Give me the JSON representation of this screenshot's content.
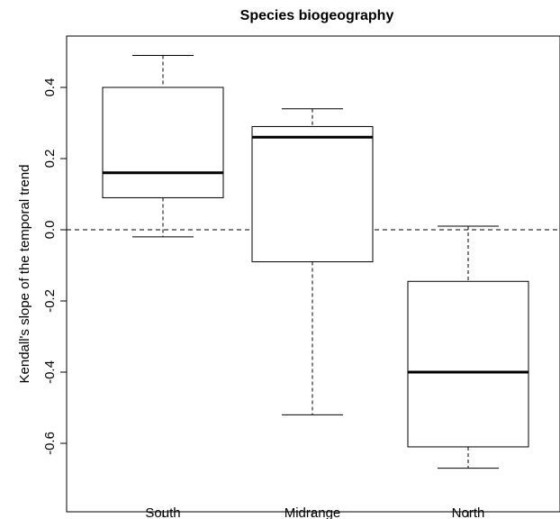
{
  "chart_data": {
    "type": "boxplot",
    "title": "Species biogeography",
    "xlabel": "",
    "ylabel": "Kendall's slope of the temporal trend",
    "ylim": [
      -0.72,
      0.53
    ],
    "yticks": [
      "0.4",
      "0.2",
      "0.0",
      "-0.2",
      "-0.4",
      "-0.6"
    ],
    "categories": [
      "South",
      "Midrange",
      "North"
    ],
    "boxes": [
      {
        "category": "South",
        "whisker_low": -0.02,
        "q1": 0.09,
        "median": 0.16,
        "q3": 0.4,
        "whisker_high": 0.49
      },
      {
        "category": "Midrange",
        "whisker_low": -0.52,
        "q1": -0.09,
        "median": 0.26,
        "q3": 0.29,
        "whisker_high": 0.34
      },
      {
        "category": "North",
        "whisker_low": -0.67,
        "q1": -0.61,
        "median": -0.4,
        "q3": -0.145,
        "whisker_high": 0.01
      }
    ],
    "reference_line": {
      "y": 0.0,
      "style": "dashed"
    },
    "grid": false,
    "legend": "none"
  }
}
